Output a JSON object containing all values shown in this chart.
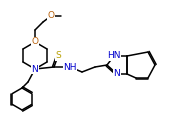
{
  "bg_color": "#ffffff",
  "line_color": "#000000",
  "atom_colors": {
    "N": "#0000cd",
    "O": "#b8600a",
    "S": "#b8a000"
  },
  "figsize": [
    1.82,
    1.21
  ],
  "dpi": 100
}
